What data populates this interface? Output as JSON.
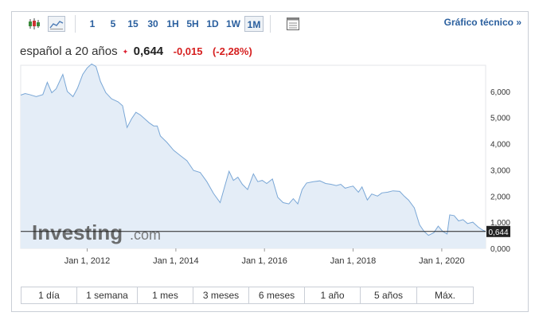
{
  "toolbar": {
    "timeframes": [
      "1",
      "5",
      "15",
      "30",
      "1H",
      "5H",
      "1D",
      "1W",
      "1M"
    ],
    "active_timeframe": "1M",
    "technical_chart_label": "Gráfico técnico »"
  },
  "quote": {
    "name": "español a 20 años",
    "price": "0,644",
    "change": "-0,015",
    "change_percent": "(-2,28%)",
    "change_color": "#d61f1f"
  },
  "chart_data": {
    "type": "area",
    "ylim": [
      0,
      7
    ],
    "y_ticks": [
      "6,000",
      "5,000",
      "4,000",
      "3,000",
      "2,000",
      "1,000",
      "0,000"
    ],
    "x_tick_labels": [
      "Jan 1, 2012",
      "Jan 1, 2014",
      "Jan 1, 2016",
      "Jan 1, 2018",
      "Jan 1, 2020"
    ],
    "x_tick_years": [
      2012,
      2014,
      2016,
      2018,
      2020
    ],
    "x_range": [
      2010.5,
      2020.99
    ],
    "last_value": 0.644,
    "last_value_label": "0,644",
    "watermark": "Investing.com",
    "line_color": "#7aa7d6",
    "fill_color": "#e4edf7",
    "points": [
      [
        2010.5,
        5.86
      ],
      [
        2010.6,
        5.92
      ],
      [
        2010.7,
        5.88
      ],
      [
        2010.85,
        5.8
      ],
      [
        2011.0,
        5.88
      ],
      [
        2011.1,
        6.35
      ],
      [
        2011.2,
        5.95
      ],
      [
        2011.3,
        6.1
      ],
      [
        2011.45,
        6.65
      ],
      [
        2011.55,
        6.0
      ],
      [
        2011.68,
        5.8
      ],
      [
        2011.78,
        6.12
      ],
      [
        2011.9,
        6.65
      ],
      [
        2012.0,
        6.9
      ],
      [
        2012.1,
        7.05
      ],
      [
        2012.2,
        6.95
      ],
      [
        2012.3,
        6.38
      ],
      [
        2012.42,
        5.95
      ],
      [
        2012.55,
        5.72
      ],
      [
        2012.7,
        5.6
      ],
      [
        2012.8,
        5.45
      ],
      [
        2012.9,
        4.62
      ],
      [
        2013.0,
        4.95
      ],
      [
        2013.1,
        5.2
      ],
      [
        2013.2,
        5.1
      ],
      [
        2013.3,
        4.95
      ],
      [
        2013.4,
        4.8
      ],
      [
        2013.5,
        4.68
      ],
      [
        2013.58,
        4.68
      ],
      [
        2013.65,
        4.3
      ],
      [
        2013.8,
        4.05
      ],
      [
        2013.95,
        3.75
      ],
      [
        2014.1,
        3.55
      ],
      [
        2014.25,
        3.35
      ],
      [
        2014.4,
        2.98
      ],
      [
        2014.55,
        2.9
      ],
      [
        2014.7,
        2.55
      ],
      [
        2014.85,
        2.1
      ],
      [
        2015.0,
        1.75
      ],
      [
        2015.1,
        2.35
      ],
      [
        2015.2,
        2.95
      ],
      [
        2015.3,
        2.6
      ],
      [
        2015.4,
        2.72
      ],
      [
        2015.5,
        2.45
      ],
      [
        2015.62,
        2.25
      ],
      [
        2015.75,
        2.85
      ],
      [
        2015.85,
        2.55
      ],
      [
        2015.95,
        2.6
      ],
      [
        2016.05,
        2.48
      ],
      [
        2016.18,
        2.65
      ],
      [
        2016.3,
        1.95
      ],
      [
        2016.42,
        1.75
      ],
      [
        2016.55,
        1.7
      ],
      [
        2016.65,
        1.9
      ],
      [
        2016.75,
        1.7
      ],
      [
        2016.85,
        2.25
      ],
      [
        2016.95,
        2.5
      ],
      [
        2017.1,
        2.55
      ],
      [
        2017.25,
        2.58
      ],
      [
        2017.38,
        2.48
      ],
      [
        2017.5,
        2.45
      ],
      [
        2017.62,
        2.4
      ],
      [
        2017.72,
        2.45
      ],
      [
        2017.82,
        2.3
      ],
      [
        2017.92,
        2.35
      ],
      [
        2018.0,
        2.38
      ],
      [
        2018.12,
        2.15
      ],
      [
        2018.2,
        2.35
      ],
      [
        2018.32,
        1.85
      ],
      [
        2018.42,
        2.08
      ],
      [
        2018.55,
        2.0
      ],
      [
        2018.65,
        2.12
      ],
      [
        2018.78,
        2.15
      ],
      [
        2018.9,
        2.2
      ],
      [
        2019.05,
        2.18
      ],
      [
        2019.15,
        2.0
      ],
      [
        2019.25,
        1.85
      ],
      [
        2019.38,
        1.55
      ],
      [
        2019.5,
        0.9
      ],
      [
        2019.6,
        0.65
      ],
      [
        2019.7,
        0.5
      ],
      [
        2019.82,
        0.6
      ],
      [
        2019.92,
        0.85
      ],
      [
        2020.02,
        0.65
      ],
      [
        2020.12,
        0.55
      ],
      [
        2020.18,
        1.28
      ],
      [
        2020.28,
        1.25
      ],
      [
        2020.38,
        1.05
      ],
      [
        2020.48,
        1.1
      ],
      [
        2020.58,
        0.95
      ],
      [
        2020.7,
        1.0
      ],
      [
        2020.82,
        0.82
      ],
      [
        2020.92,
        0.7
      ],
      [
        2020.99,
        0.644
      ]
    ]
  },
  "range_buttons": [
    "1 día",
    "1 semana",
    "1 mes",
    "3 meses",
    "6 meses",
    "1 año",
    "5 años",
    "Máx."
  ]
}
